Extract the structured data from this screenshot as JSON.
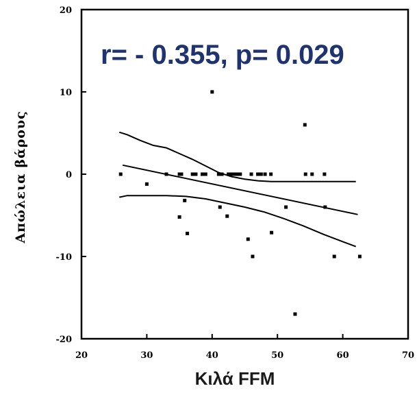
{
  "chart_data": {
    "type": "scatter",
    "xlabel": "Κιλά FFM",
    "ylabel": "Απώλεια βάρους",
    "annotation": "r= - 0.355, p= 0.029",
    "annotation_color": "#1f3370",
    "xlim": [
      20,
      70
    ],
    "ylim": [
      -20,
      20
    ],
    "xticks": [
      20,
      30,
      40,
      50,
      60,
      70
    ],
    "yticks": [
      -20,
      -10,
      0,
      10,
      20
    ],
    "grid": false,
    "points": [
      [
        26,
        0
      ],
      [
        30,
        -1.2
      ],
      [
        33,
        0
      ],
      [
        35,
        0
      ],
      [
        35.3,
        0
      ],
      [
        35.8,
        -3.2
      ],
      [
        35,
        -5.2
      ],
      [
        36.2,
        -7.2
      ],
      [
        37,
        0
      ],
      [
        37.5,
        0
      ],
      [
        38.5,
        0
      ],
      [
        39,
        0
      ],
      [
        40,
        10
      ],
      [
        41,
        0
      ],
      [
        41.2,
        -4
      ],
      [
        41.5,
        0
      ],
      [
        42.3,
        -5.1
      ],
      [
        42.5,
        0
      ],
      [
        43,
        0
      ],
      [
        43.5,
        0
      ],
      [
        44,
        0
      ],
      [
        44.3,
        0
      ],
      [
        45.5,
        -7.9
      ],
      [
        46,
        0
      ],
      [
        46.2,
        -10
      ],
      [
        47,
        0
      ],
      [
        47.5,
        0
      ],
      [
        48.1,
        0
      ],
      [
        49,
        0
      ],
      [
        49.1,
        -7.1
      ],
      [
        51.3,
        -4
      ],
      [
        52.7,
        -17
      ],
      [
        54.2,
        6
      ],
      [
        54.3,
        0
      ],
      [
        55.3,
        0
      ],
      [
        57.2,
        0
      ],
      [
        57.3,
        -4
      ],
      [
        58.7,
        -10
      ],
      [
        62.6,
        -10
      ]
    ],
    "regression_line": [
      [
        26.3,
        1.1
      ],
      [
        62.3,
        -4.9
      ]
    ],
    "upper_confidence": [
      [
        25.8,
        5.1
      ],
      [
        27,
        4.8
      ],
      [
        29,
        4.1
      ],
      [
        31,
        3.5
      ],
      [
        33,
        3.2
      ],
      [
        35,
        2.5
      ],
      [
        37,
        1.8
      ],
      [
        39,
        1
      ],
      [
        41,
        0.2
      ],
      [
        43,
        -0.3
      ],
      [
        45,
        -0.6
      ],
      [
        47,
        -0.8
      ],
      [
        49,
        -0.9
      ],
      [
        52,
        -0.9
      ],
      [
        55,
        -0.9
      ],
      [
        58,
        -0.9
      ],
      [
        62,
        -0.9
      ]
    ],
    "lower_confidence": [
      [
        25.8,
        -2.8
      ],
      [
        27,
        -2.6
      ],
      [
        30,
        -2.6
      ],
      [
        33,
        -2.6
      ],
      [
        36,
        -2.7
      ],
      [
        39,
        -3
      ],
      [
        42,
        -3.5
      ],
      [
        45,
        -4
      ],
      [
        48,
        -4.6
      ],
      [
        51,
        -5.4
      ],
      [
        54,
        -6.3
      ],
      [
        57,
        -7.3
      ],
      [
        60,
        -8.2
      ],
      [
        62,
        -8.8
      ]
    ]
  }
}
